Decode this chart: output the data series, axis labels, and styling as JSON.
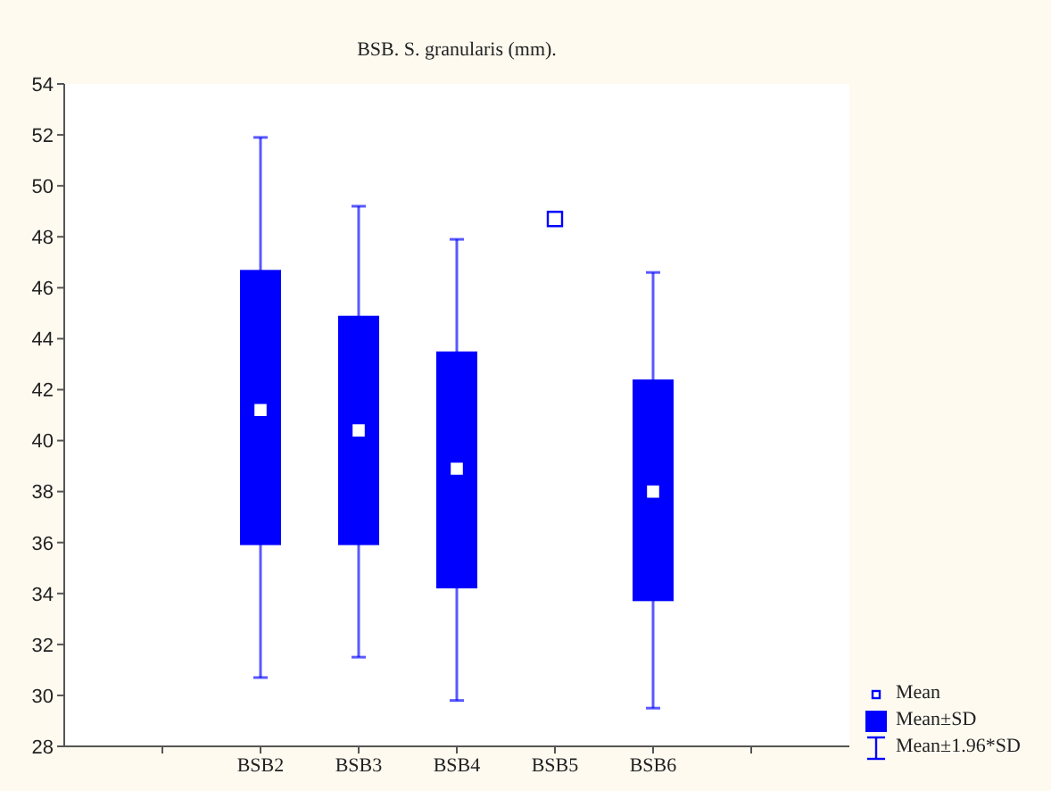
{
  "chart_data": {
    "type": "box",
    "title": "BSB. S. granularis (mm).",
    "categories": [
      null,
      "BSB2",
      "BSB3",
      "BSB4",
      "BSB5",
      "BSB6",
      null
    ],
    "series": [
      {
        "color": "#0000ff",
        "boxes": [
          null,
          {
            "low": 30.7,
            "q1": 35.9,
            "q3": 46.7,
            "high": 51.9
          },
          {
            "low": 31.5,
            "q1": 35.9,
            "q3": 44.9,
            "high": 49.2
          },
          {
            "low": 29.8,
            "q1": 34.2,
            "q3": 43.5,
            "high": 47.9
          },
          null,
          {
            "low": 29.5,
            "q1": 33.7,
            "q3": 42.4,
            "high": 46.6
          },
          null
        ]
      },
      {
        "type": "scatter",
        "color": "#0000ff",
        "x": [
          "BSB2",
          "BSB3",
          "BSB4",
          "BSB5",
          "BSB6"
        ],
        "values": [
          41.2,
          40.4,
          38.9,
          48.7,
          38.0
        ]
      }
    ],
    "marker": "square",
    "ylim": [
      28,
      54
    ],
    "yticks": [
      28,
      30,
      32,
      34,
      36,
      38,
      40,
      42,
      44,
      46,
      48,
      50,
      52,
      54
    ],
    "annotations": [
      "Mean",
      "Mean±SD",
      "Mean±1.96*SD"
    ]
  }
}
